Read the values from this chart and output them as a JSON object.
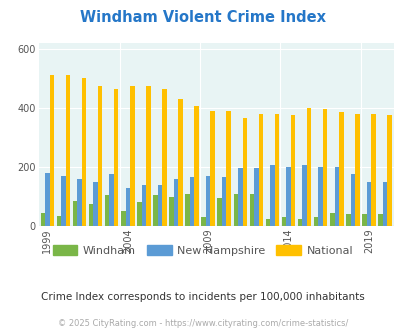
{
  "title": "Windham Violent Crime Index",
  "years": [
    1999,
    2000,
    2001,
    2002,
    2003,
    2004,
    2005,
    2006,
    2007,
    2008,
    2009,
    2010,
    2011,
    2012,
    2013,
    2014,
    2015,
    2016,
    2017,
    2018,
    2019,
    2020
  ],
  "windham": [
    45,
    35,
    85,
    75,
    105,
    50,
    80,
    105,
    100,
    110,
    30,
    95,
    110,
    110,
    25,
    30,
    25,
    30,
    45,
    40,
    40,
    40
  ],
  "new_hampshire": [
    180,
    170,
    160,
    150,
    175,
    130,
    140,
    140,
    160,
    165,
    170,
    165,
    195,
    195,
    205,
    200,
    205,
    200,
    200,
    175,
    150,
    150
  ],
  "national": [
    510,
    510,
    500,
    475,
    465,
    475,
    475,
    465,
    430,
    405,
    390,
    390,
    365,
    380,
    380,
    375,
    400,
    395,
    385,
    380,
    380,
    375
  ],
  "windham_color": "#7ab648",
  "nh_color": "#5b9bd5",
  "national_color": "#ffc000",
  "bg_color": "#e8f4f4",
  "ylim": [
    0,
    620
  ],
  "yticks": [
    0,
    200,
    400,
    600
  ],
  "xlabel_years": [
    1999,
    2004,
    2009,
    2014,
    2019
  ],
  "subtitle": "Crime Index corresponds to incidents per 100,000 inhabitants",
  "footer": "© 2025 CityRating.com - https://www.cityrating.com/crime-statistics/",
  "legend_labels": [
    "Windham",
    "New Hampshire",
    "National"
  ],
  "bar_width": 0.28,
  "title_color": "#2577c8",
  "subtitle_color": "#333333",
  "footer_color": "#aaaaaa",
  "legend_text_color": "#555555"
}
